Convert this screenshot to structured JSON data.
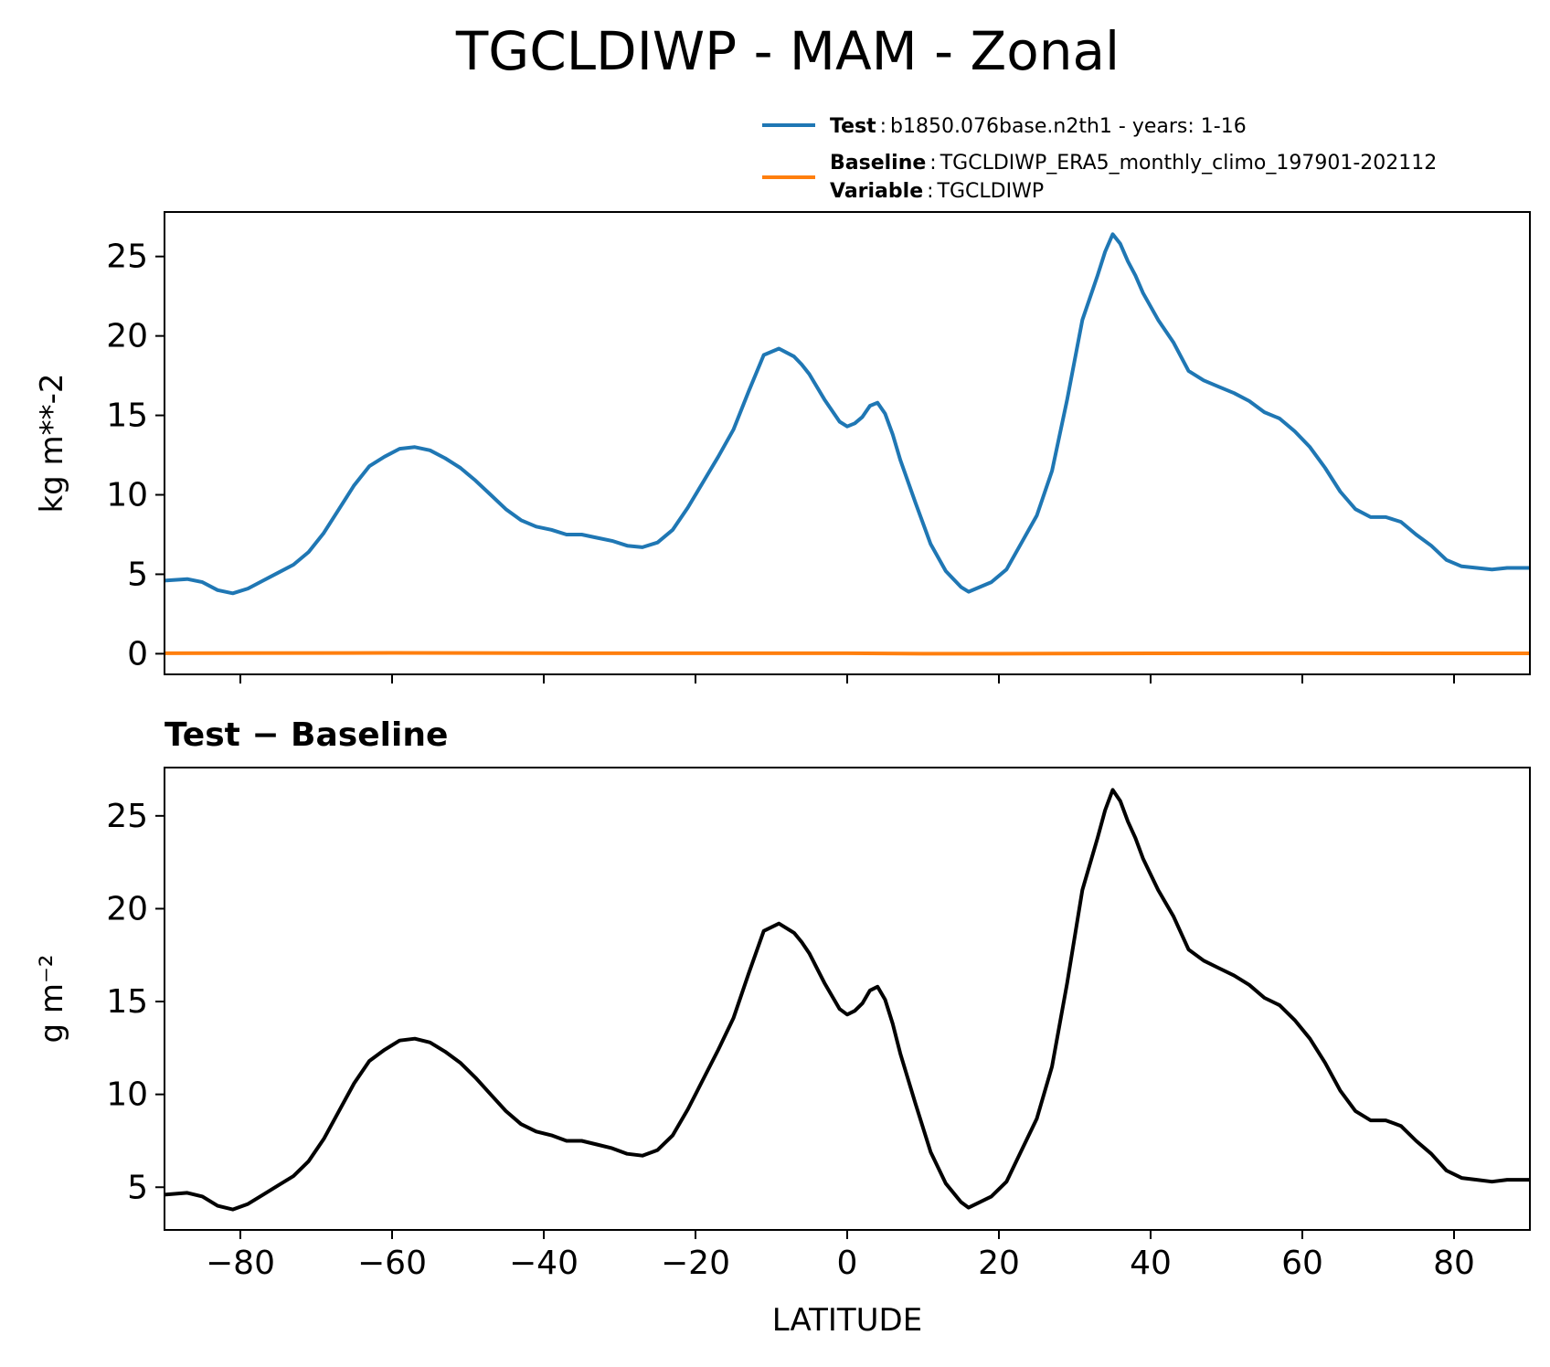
{
  "figure": {
    "title": "TGCLDIWP - MAM - Zonal"
  },
  "legend": {
    "entries": [
      {
        "key": "Test",
        "sep": ":",
        "value": "b1850.076base.n2th1 - years: 1-16",
        "color": "#1f77b4"
      },
      {
        "key": "Baseline",
        "sep": ":",
        "value": "TGCLDIWP_ERA5_monthly_climo_197901-202112",
        "color": "#ff7f0e"
      },
      {
        "key": "Variable",
        "sep": ":",
        "value": "TGCLDIWP"
      }
    ]
  },
  "chart_data": [
    {
      "type": "line",
      "xlabel": "",
      "ylabel": "kg m**-2",
      "xlim": [
        -90,
        90
      ],
      "ylim": [
        -1.3,
        27.8
      ],
      "xticks": [
        -80,
        -60,
        -40,
        -20,
        0,
        20,
        40,
        60,
        80
      ],
      "yticks": [
        0,
        5,
        10,
        15,
        20,
        25
      ],
      "show_x_tick_labels": false,
      "grid": false,
      "legend_position": "above-right",
      "series": [
        {
          "name": "Test",
          "color": "#1f77b4",
          "x": [
            -90,
            -87,
            -85,
            -83,
            -81,
            -79,
            -77,
            -75,
            -73,
            -71,
            -69,
            -67,
            -65,
            -63,
            -61,
            -59,
            -57,
            -55,
            -53,
            -51,
            -49,
            -47,
            -45,
            -43,
            -41,
            -39,
            -37,
            -35,
            -33,
            -31,
            -29,
            -27,
            -25,
            -23,
            -21,
            -19,
            -17,
            -15,
            -13,
            -11,
            -9,
            -7,
            -6,
            -5,
            -3,
            -1,
            0,
            1,
            2,
            3,
            4,
            5,
            6,
            7,
            9,
            11,
            13,
            15,
            16,
            17,
            19,
            21,
            23,
            25,
            27,
            29,
            31,
            33,
            34,
            35,
            36,
            37,
            38,
            39,
            41,
            43,
            45,
            47,
            49,
            51,
            53,
            55,
            57,
            59,
            61,
            63,
            65,
            67,
            69,
            71,
            73,
            75,
            77,
            79,
            81,
            83,
            85,
            87,
            90
          ],
          "values": [
            4.6,
            4.7,
            4.5,
            4.0,
            3.8,
            4.1,
            4.6,
            5.1,
            5.6,
            6.4,
            7.6,
            9.1,
            10.6,
            11.8,
            12.4,
            12.9,
            13.0,
            12.8,
            12.3,
            11.7,
            10.9,
            10.0,
            9.1,
            8.4,
            8.0,
            7.8,
            7.5,
            7.5,
            7.3,
            7.1,
            6.8,
            6.7,
            7.0,
            7.8,
            9.2,
            10.8,
            12.4,
            14.1,
            16.5,
            18.8,
            19.2,
            18.7,
            18.2,
            17.6,
            16.0,
            14.6,
            14.3,
            14.5,
            14.9,
            15.6,
            15.8,
            15.1,
            13.8,
            12.2,
            9.5,
            6.9,
            5.2,
            4.2,
            3.9,
            4.1,
            4.5,
            5.3,
            7.0,
            8.7,
            11.5,
            16.0,
            21.0,
            23.8,
            25.3,
            26.4,
            25.8,
            24.7,
            23.8,
            22.7,
            21.0,
            19.6,
            17.8,
            17.2,
            16.8,
            16.4,
            15.9,
            15.2,
            14.8,
            14.0,
            13.0,
            11.7,
            10.2,
            9.1,
            8.6,
            8.6,
            8.3,
            7.5,
            6.8,
            5.9,
            5.5,
            5.4,
            5.3,
            5.4,
            5.4
          ]
        },
        {
          "name": "Baseline",
          "color": "#ff7f0e",
          "x": [
            -90,
            -60,
            -30,
            0,
            10,
            20,
            40,
            60,
            90
          ],
          "values": [
            0.03,
            0.05,
            0.03,
            0.03,
            0.0,
            0.0,
            0.02,
            0.03,
            0.02
          ]
        }
      ]
    },
    {
      "type": "line",
      "title": "Test − Baseline",
      "xlabel": "LATITUDE",
      "ylabel": "g m⁻²",
      "xlim": [
        -90,
        90
      ],
      "ylim": [
        2.7,
        27.6
      ],
      "xticks": [
        -80,
        -60,
        -40,
        -20,
        0,
        20,
        40,
        60,
        80
      ],
      "xtick_labels": [
        "−80",
        "−60",
        "−40",
        "−20",
        "0",
        "20",
        "40",
        "60",
        "80"
      ],
      "yticks": [
        5,
        10,
        15,
        20,
        25
      ],
      "grid": false,
      "series": [
        {
          "color": "#000000",
          "x": [
            -90,
            -87,
            -85,
            -83,
            -81,
            -79,
            -77,
            -75,
            -73,
            -71,
            -69,
            -67,
            -65,
            -63,
            -61,
            -59,
            -57,
            -55,
            -53,
            -51,
            -49,
            -47,
            -45,
            -43,
            -41,
            -39,
            -37,
            -35,
            -33,
            -31,
            -29,
            -27,
            -25,
            -23,
            -21,
            -19,
            -17,
            -15,
            -13,
            -11,
            -9,
            -7,
            -6,
            -5,
            -3,
            -1,
            0,
            1,
            2,
            3,
            4,
            5,
            6,
            7,
            9,
            11,
            13,
            15,
            16,
            17,
            19,
            21,
            23,
            25,
            27,
            29,
            31,
            33,
            34,
            35,
            36,
            37,
            38,
            39,
            41,
            43,
            45,
            47,
            49,
            51,
            53,
            55,
            57,
            59,
            61,
            63,
            65,
            67,
            69,
            71,
            73,
            75,
            77,
            79,
            81,
            83,
            85,
            87,
            90
          ],
          "values": [
            4.6,
            4.7,
            4.5,
            4.0,
            3.8,
            4.1,
            4.6,
            5.1,
            5.6,
            6.4,
            7.6,
            9.1,
            10.6,
            11.8,
            12.4,
            12.9,
            13.0,
            12.8,
            12.3,
            11.7,
            10.9,
            10.0,
            9.1,
            8.4,
            8.0,
            7.8,
            7.5,
            7.5,
            7.3,
            7.1,
            6.8,
            6.7,
            7.0,
            7.8,
            9.2,
            10.8,
            12.4,
            14.1,
            16.5,
            18.8,
            19.2,
            18.7,
            18.2,
            17.6,
            16.0,
            14.6,
            14.3,
            14.5,
            14.9,
            15.6,
            15.8,
            15.1,
            13.8,
            12.2,
            9.5,
            6.9,
            5.2,
            4.2,
            3.9,
            4.1,
            4.5,
            5.3,
            7.0,
            8.7,
            11.5,
            16.0,
            21.0,
            23.8,
            25.3,
            26.4,
            25.8,
            24.7,
            23.8,
            22.7,
            21.0,
            19.6,
            17.8,
            17.2,
            16.8,
            16.4,
            15.9,
            15.2,
            14.8,
            14.0,
            13.0,
            11.7,
            10.2,
            9.1,
            8.6,
            8.6,
            8.3,
            7.5,
            6.8,
            5.9,
            5.5,
            5.4,
            5.3,
            5.4,
            5.4
          ]
        }
      ]
    }
  ]
}
